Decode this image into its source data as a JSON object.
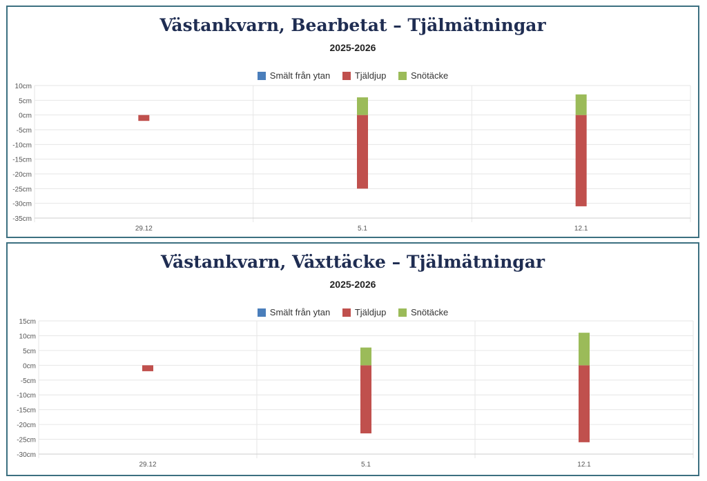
{
  "colors": {
    "melt": "#4a7ebb",
    "frost": "#c0504d",
    "snow": "#9bbb59"
  },
  "chart_data": [
    {
      "type": "bar",
      "stacked": true,
      "title": "Västankvarn, Bearbetat – Tjälmätningar",
      "subtitle": "2025-2026",
      "legend": [
        "Smält från ytan",
        "Tjäldjup",
        "Snötäcke"
      ],
      "legend_position": "top",
      "categories": [
        "29.12",
        "5.1",
        "12.1"
      ],
      "series": [
        {
          "name": "Smält från ytan",
          "values": [
            0,
            0,
            0
          ]
        },
        {
          "name": "Tjäldjup",
          "values": [
            -2,
            -25,
            -31
          ]
        },
        {
          "name": "Snötäcke",
          "values": [
            0,
            6,
            7
          ]
        }
      ],
      "ylim": [
        -35,
        10
      ],
      "ytick_step": 5,
      "yunit": "cm",
      "grid": true
    },
    {
      "type": "bar",
      "stacked": true,
      "title": "Västankvarn, Växttäcke – Tjälmätningar",
      "subtitle": "2025-2026",
      "legend": [
        "Smält från ytan",
        "Tjäldjup",
        "Snötäcke"
      ],
      "legend_position": "top",
      "categories": [
        "29.12",
        "5.1",
        "12.1"
      ],
      "series": [
        {
          "name": "Smält från ytan",
          "values": [
            0,
            0,
            0
          ]
        },
        {
          "name": "Tjäldjup",
          "values": [
            -2,
            -23,
            -26
          ]
        },
        {
          "name": "Snötäcke",
          "values": [
            0,
            6,
            11
          ]
        }
      ],
      "ylim": [
        -30,
        15
      ],
      "ytick_step": 5,
      "yunit": "cm",
      "grid": true
    }
  ]
}
